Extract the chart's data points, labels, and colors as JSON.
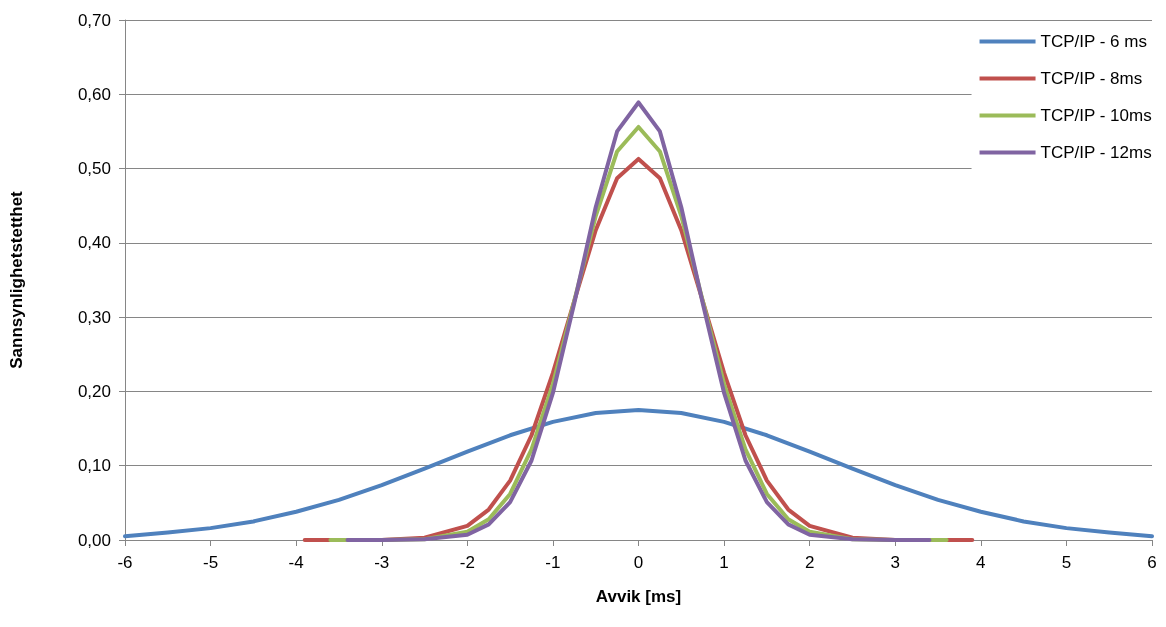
{
  "chart_data": {
    "type": "line",
    "xlabel": "Avvik [ms]",
    "ylabel": "Sannsynlighetstetthet",
    "xlim": [
      -6,
      6
    ],
    "xticks": [
      -6,
      -5,
      -4,
      -3,
      -2,
      -1,
      0,
      1,
      2,
      3,
      4,
      5,
      6
    ],
    "ylim": [
      0,
      0.7
    ],
    "yticks": [
      {
        "value": 0,
        "label": "0,00"
      },
      {
        "value": 0.1,
        "label": "0,10"
      },
      {
        "value": 0.2,
        "label": "0,20"
      },
      {
        "value": 0.3,
        "label": "0,30"
      },
      {
        "value": 0.4,
        "label": "0,40"
      },
      {
        "value": 0.5,
        "label": "0,50"
      },
      {
        "value": 0.6,
        "label": "0,60"
      },
      {
        "value": 0.7,
        "label": "0,70"
      }
    ],
    "grid": "y",
    "legend": "top right",
    "marker": "none",
    "line_style": "solid",
    "series": [
      {
        "name": "TCP/IP - 6 ms",
        "color": "#4f81bd",
        "x": [
          -6,
          -5.5,
          -5,
          -4.5,
          -4,
          -3.5,
          -3,
          -2.5,
          -2,
          -1.5,
          -1,
          -0.5,
          0,
          0.5,
          1,
          1.5,
          2,
          2.5,
          3,
          3.5,
          4,
          4.5,
          5,
          5.5,
          6
        ],
        "values": [
          0.005,
          0.01,
          0.016,
          0.025,
          0.038,
          0.054,
          0.074,
          0.096,
          0.119,
          0.141,
          0.159,
          0.171,
          0.175,
          0.171,
          0.159,
          0.141,
          0.119,
          0.096,
          0.074,
          0.054,
          0.038,
          0.025,
          0.016,
          0.01,
          0.005
        ]
      },
      {
        "name": "TCP/IP - 8ms",
        "color": "#c0504d",
        "x": [
          -3.9,
          -3,
          -2.5,
          -2,
          -1.75,
          -1.5,
          -1.25,
          -1,
          -0.75,
          -0.5,
          -0.25,
          0,
          0.25,
          0.5,
          0.75,
          1,
          1.25,
          1.5,
          1.75,
          2,
          2.5,
          3,
          3.9
        ],
        "values": [
          0,
          0,
          0.003,
          0.019,
          0.041,
          0.08,
          0.141,
          0.225,
          0.322,
          0.417,
          0.487,
          0.513,
          0.487,
          0.417,
          0.322,
          0.225,
          0.141,
          0.08,
          0.041,
          0.019,
          0.003,
          0,
          0
        ]
      },
      {
        "name": "TCP/IP - 10ms",
        "color": "#9bbb59",
        "x": [
          -3.6,
          -3,
          -2.5,
          -2,
          -1.75,
          -1.5,
          -1.25,
          -1,
          -0.75,
          -0.5,
          -0.25,
          0,
          0.25,
          0.5,
          0.75,
          1,
          1.25,
          1.5,
          1.75,
          2,
          2.5,
          3,
          3.6
        ],
        "values": [
          0,
          0,
          0.001,
          0.011,
          0.028,
          0.062,
          0.122,
          0.21,
          0.322,
          0.436,
          0.523,
          0.556,
          0.523,
          0.436,
          0.322,
          0.21,
          0.122,
          0.062,
          0.028,
          0.011,
          0.001,
          0,
          0
        ]
      },
      {
        "name": "TCP/IP - 12ms",
        "color": "#8064a2",
        "x": [
          -3.4,
          -3,
          -2.5,
          -2,
          -1.75,
          -1.5,
          -1.25,
          -1,
          -0.75,
          -0.5,
          -0.25,
          0,
          0.25,
          0.5,
          0.75,
          1,
          1.25,
          1.5,
          1.75,
          2,
          2.5,
          3,
          3.4
        ],
        "values": [
          0,
          0,
          0.001,
          0.007,
          0.021,
          0.051,
          0.107,
          0.198,
          0.319,
          0.448,
          0.55,
          0.589,
          0.55,
          0.448,
          0.319,
          0.198,
          0.107,
          0.051,
          0.021,
          0.007,
          0.001,
          0,
          0
        ]
      }
    ]
  }
}
